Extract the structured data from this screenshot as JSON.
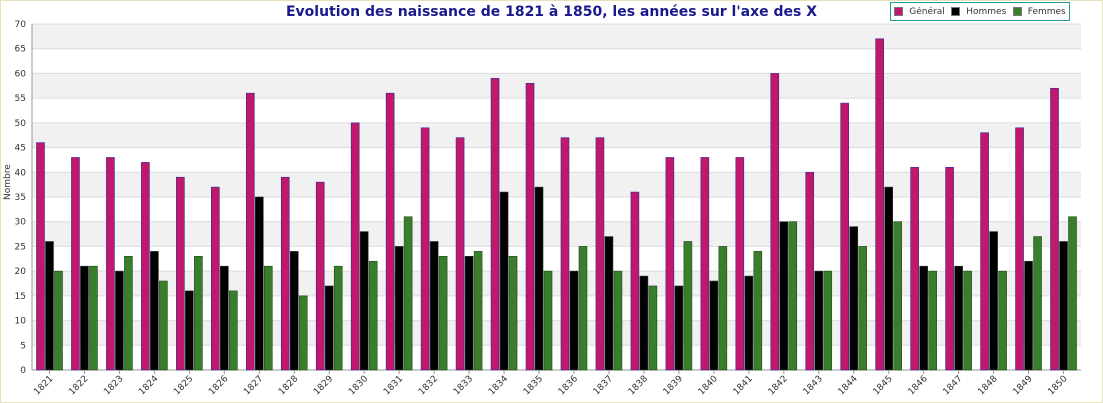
{
  "chart_data": {
    "type": "bar",
    "title": "Evolution des naissance de 1821 à 1850, les années sur l'axe des X",
    "xlabel": "",
    "ylabel": "Nombre",
    "ylim": [
      0,
      70
    ],
    "yticks": [
      0,
      5,
      10,
      15,
      20,
      25,
      30,
      35,
      40,
      45,
      50,
      55,
      60,
      65,
      70
    ],
    "grid": true,
    "legend_position": "top-right",
    "categories": [
      "1821",
      "1822",
      "1823",
      "1824",
      "1825",
      "1826",
      "1827",
      "1828",
      "1829",
      "1830",
      "1831",
      "1832",
      "1833",
      "1834",
      "1835",
      "1836",
      "1837",
      "1838",
      "1839",
      "1840",
      "1841",
      "1842",
      "1843",
      "1844",
      "1845",
      "1846",
      "1847",
      "1848",
      "1849",
      "1850"
    ],
    "series": [
      {
        "name": "Général",
        "color": "#c2186b",
        "values": [
          46,
          43,
          43,
          42,
          39,
          37,
          56,
          39,
          38,
          50,
          56,
          49,
          47,
          59,
          58,
          47,
          47,
          36,
          43,
          43,
          43,
          60,
          40,
          54,
          67,
          41,
          41,
          48,
          49,
          57
        ]
      },
      {
        "name": "Hommes",
        "color": "#000000",
        "values": [
          26,
          21,
          20,
          24,
          16,
          21,
          35,
          24,
          17,
          28,
          25,
          26,
          23,
          36,
          37,
          20,
          27,
          19,
          17,
          18,
          19,
          30,
          20,
          29,
          37,
          21,
          21,
          28,
          22,
          26
        ]
      },
      {
        "name": "Femmes",
        "color": "#3a7d2c",
        "values": [
          20,
          21,
          23,
          18,
          23,
          16,
          21,
          15,
          21,
          22,
          31,
          23,
          24,
          23,
          20,
          25,
          20,
          17,
          26,
          25,
          24,
          30,
          20,
          25,
          30,
          20,
          20,
          20,
          27,
          31
        ]
      }
    ]
  }
}
